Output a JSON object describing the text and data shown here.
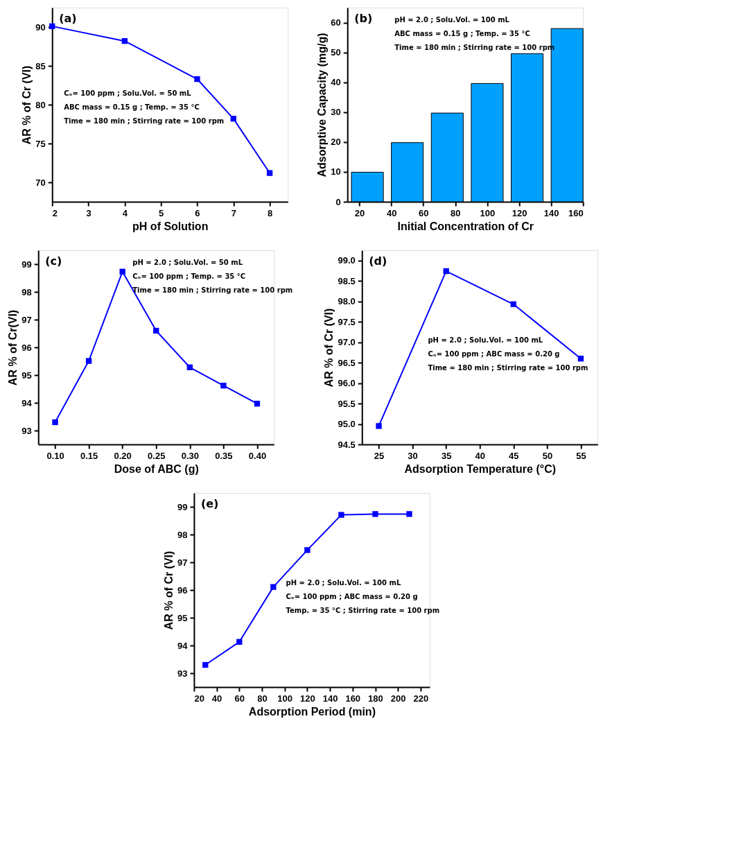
{
  "chart_data": [
    {
      "type": "line",
      "xlabel": "pH of Solution",
      "ylabel": "AR % of Cr (VI)",
      "x": [
        2,
        4,
        6,
        7,
        8
      ],
      "series": [
        {
          "color": "#0000ff",
          "values": [
            90.1,
            88.2,
            83.3,
            78.2,
            71.2
          ]
        }
      ],
      "xlim": [
        2,
        8.5
      ],
      "xticks": [
        2,
        3,
        4,
        5,
        6,
        7,
        8
      ],
      "ylim": [
        67.5,
        92.5
      ],
      "yticks": [
        70,
        75,
        80,
        85,
        90
      ],
      "marker": "square",
      "line_style": "solid",
      "annotations": [
        "(a)",
        "Cₒ= 100 ppm ; Solu.Vol. = 50 mL",
        "ABC mass = 0.15 g ; Temp. =  35 °C",
        "Time = 180 min  ; Stirring rate = 100 rpm"
      ]
    },
    {
      "type": "bar",
      "xlabel": "Initial Concentration of Cr",
      "ylabel": "Adsorptive Capacity (mg/g)",
      "x": [
        25,
        50,
        75,
        100,
        125,
        150
      ],
      "series": [
        {
          "color": "#00a0ff",
          "values": [
            9.9,
            19.8,
            29.7,
            39.6,
            49.6,
            58
          ]
        }
      ],
      "xlim": [
        12.5,
        160
      ],
      "xticks": [
        20,
        40,
        60,
        80,
        100,
        120,
        140,
        160
      ],
      "ylim": [
        0,
        65
      ],
      "yticks": [
        0,
        10,
        20,
        30,
        40,
        50,
        60
      ],
      "annotations": [
        "(b)",
        "pH = 2.0 ; Solu.Vol. = 100 mL",
        "ABC mass = 0.15 g ; Temp. =  35 °C",
        "Time = 180 min  ; Stirring rate = 100 rpm"
      ]
    },
    {
      "type": "line",
      "xlabel": "Dose of ABC (g)",
      "ylabel": "AR % of Cr(VI)",
      "x": [
        0.1,
        0.15,
        0.2,
        0.25,
        0.3,
        0.35,
        0.4
      ],
      "series": [
        {
          "color": "#0000ff",
          "values": [
            93.3,
            95.51,
            98.73,
            96.6,
            95.28,
            94.62,
            93.97
          ]
        }
      ],
      "xlim": [
        0.075,
        0.425
      ],
      "xticks": [
        {
          "value": 0.1,
          "label": "0.10"
        },
        {
          "value": 0.15,
          "label": "0.15"
        },
        {
          "value": 0.2,
          "label": "0.20"
        },
        {
          "value": 0.25,
          "label": "0.25"
        },
        {
          "value": 0.3,
          "label": "0.30"
        },
        {
          "value": 0.35,
          "label": "0.35"
        },
        {
          "value": 0.4,
          "label": "0.40"
        }
      ],
      "ylim": [
        92.5,
        99.5
      ],
      "yticks": [
        93,
        94,
        95,
        96,
        97,
        98,
        99
      ],
      "marker": "square",
      "line_style": "solid",
      "annotations": [
        "(c)",
        "pH = 2.0 ; Solu.Vol. = 50 mL",
        "Cₒ= 100 ppm ; Temp. =  35 °C",
        "Time = 180 min  ; Stirring rate = 100 rpm"
      ]
    },
    {
      "type": "line",
      "xlabel": "Adsorption Temperature (°C)",
      "ylabel": "AR % of Cr (VI)",
      "x": [
        25,
        35,
        45,
        55
      ],
      "series": [
        {
          "color": "#0000ff",
          "values": [
            94.95,
            98.74,
            97.93,
            96.6
          ]
        }
      ],
      "xlim": [
        22.5,
        57.5
      ],
      "xticks": [
        25,
        30,
        35,
        40,
        45,
        50,
        55
      ],
      "ylim": [
        94.5,
        99.25
      ],
      "yticks": [
        94.5,
        {
          "value": 95,
          "label": "95.0"
        },
        95.5,
        {
          "value": 96,
          "label": "96.0"
        },
        96.5,
        {
          "value": 97,
          "label": "97.0"
        },
        97.5,
        {
          "value": 98,
          "label": "98.0"
        },
        98.5,
        {
          "value": 99,
          "label": "99.0"
        }
      ],
      "marker": "square",
      "line_style": "solid",
      "annotations": [
        "(d)",
        "pH = 2.0 ; Solu.Vol. = 100 mL",
        "Cₒ= 100 ppm ; ABC mass = 0.20 g",
        "Time = 180 min  ; Stirring rate = 100 rpm"
      ]
    },
    {
      "type": "line",
      "xlabel": "Adsorption Period (min)",
      "ylabel": "AR % of Cr (VI)",
      "x": [
        30,
        60,
        90,
        120,
        150,
        180,
        210
      ],
      "series": [
        {
          "color": "#0000ff",
          "values": [
            93.3,
            94.13,
            96.11,
            97.44,
            98.71,
            98.74,
            98.74
          ]
        }
      ],
      "xlim": [
        20,
        228
      ],
      "xticks": [
        20,
        40,
        60,
        80,
        100,
        120,
        140,
        160,
        180,
        200,
        220
      ],
      "ylim": [
        92.5,
        99.5
      ],
      "yticks": [
        93,
        94,
        95,
        96,
        97,
        98,
        99
      ],
      "marker": "square",
      "line_style": "solid",
      "annotations": [
        "(e)",
        "pH = 2.0 ; Solu.Vol. = 100 mL",
        "Cₒ= 100 ppm ; ABC mass = 0.20 g",
        "Temp. = 35 °C  ; Stirring rate = 100 rpm"
      ]
    }
  ]
}
